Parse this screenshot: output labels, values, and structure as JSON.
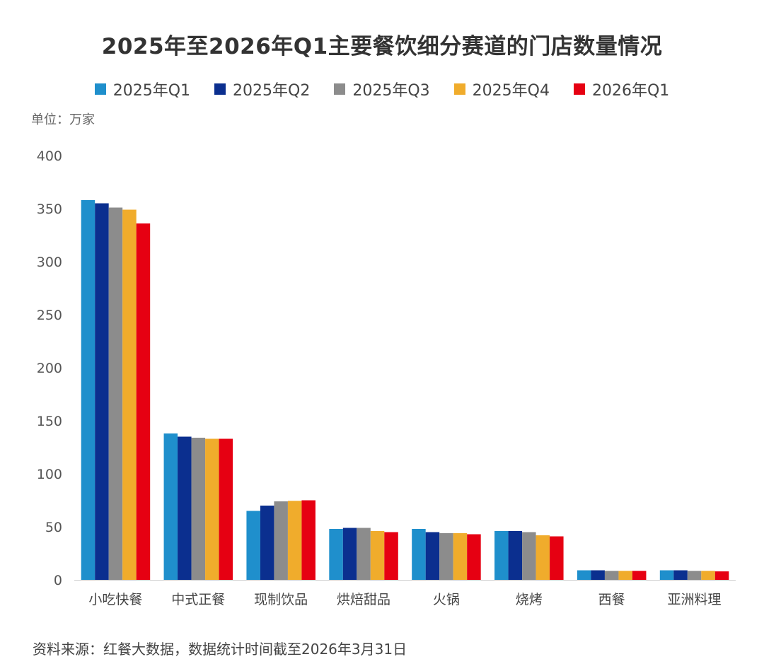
{
  "chart_data": {
    "type": "bar",
    "title": "2025年至2026年Q1主要餐饮细分赛道的门店数量情况",
    "unit_label": "单位：万家",
    "source": "资料来源：红餐大数据，数据统计时间截至2026年3月31日",
    "categories": [
      "小吃快餐",
      "中式正餐",
      "现制饮品",
      "烘焙甜品",
      "火锅",
      "烧烤",
      "西餐",
      "亚洲料理"
    ],
    "ylim": [
      0,
      400
    ],
    "yticks": [
      0,
      50,
      100,
      150,
      200,
      250,
      300,
      350,
      400
    ],
    "grid": false,
    "legend_position": "top-center",
    "series": [
      {
        "name": "2025年Q1",
        "color": "#1f8fcc",
        "values": [
          358,
          138,
          65,
          48,
          48,
          46,
          9,
          9
        ]
      },
      {
        "name": "2025年Q2",
        "color": "#0b2f8f",
        "values": [
          355,
          135,
          70,
          49,
          45,
          46,
          9,
          9
        ]
      },
      {
        "name": "2025年Q3",
        "color": "#8c8c8c",
        "values": [
          351,
          134,
          74,
          49,
          44,
          45,
          8.5,
          8.5
        ]
      },
      {
        "name": "2025年Q4",
        "color": "#f0ac2c",
        "values": [
          349,
          133,
          74.5,
          46,
          44,
          42,
          8.5,
          8.5
        ]
      },
      {
        "name": "2026年Q1",
        "color": "#e60012",
        "values": [
          336,
          133,
          75,
          45,
          43,
          41,
          8.5,
          8
        ]
      }
    ]
  }
}
